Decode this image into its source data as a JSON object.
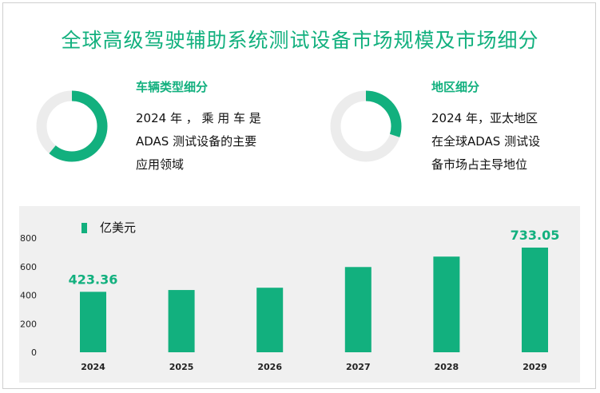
{
  "title": "全球高级驾驶辅助系统测试设备市场规模及市场细分",
  "colors": {
    "accent": "#12b07e",
    "ring_bg": "#ececec"
  },
  "segments": [
    {
      "heading": "车辆类型细分",
      "lines": [
        "2024 年 ， 乘 用 车 是",
        "ADAS 测试设备的主要",
        "应用领域"
      ],
      "donut_fraction": 0.61
    },
    {
      "heading": "地区细分",
      "lines": [
        "2024 年，亚太地区",
        "在全球ADAS 测试设",
        "备市场占主导地位"
      ],
      "donut_fraction": 0.3
    }
  ],
  "chart_data": {
    "type": "bar",
    "legend": "亿美元",
    "categories": [
      "2024",
      "2025",
      "2026",
      "2027",
      "2028",
      "2029"
    ],
    "values": [
      423.36,
      436,
      452,
      597,
      670,
      733.05
    ],
    "labels": [
      "423.36",
      "",
      "",
      "",
      "",
      "733.05"
    ],
    "yticks": [
      "800",
      "600",
      "400",
      "200",
      "0"
    ],
    "ylim": [
      0,
      800
    ]
  }
}
